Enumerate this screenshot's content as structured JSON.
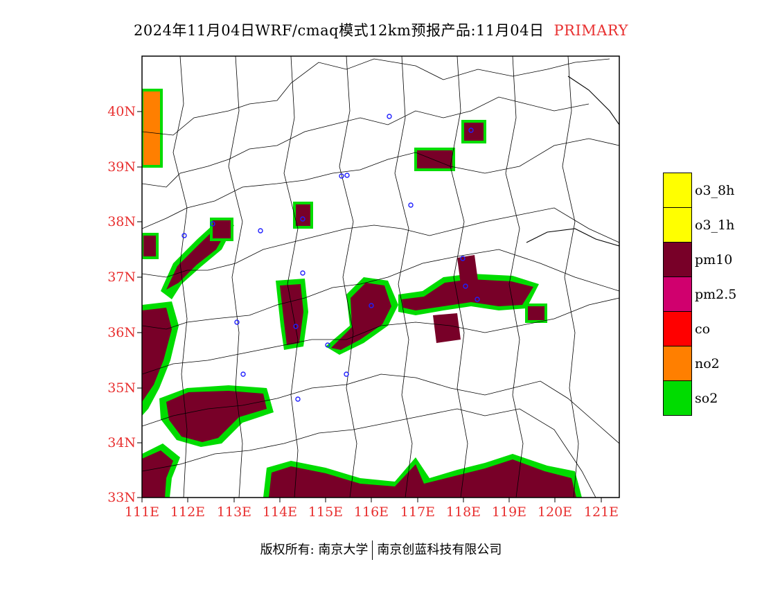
{
  "title": {
    "main": "2024年11月04日WRF/cmaq模式12km预报产品:11月04日",
    "variant": "PRIMARY"
  },
  "axes": {
    "lat_labels": [
      "40N",
      "39N",
      "38N",
      "37N",
      "36N",
      "35N",
      "34N",
      "33N"
    ],
    "lon_labels": [
      "111E",
      "112E",
      "113E",
      "114E",
      "115E",
      "116E",
      "117E",
      "118E",
      "119E",
      "120E",
      "121E"
    ],
    "lon_range": [
      111,
      121.4
    ],
    "lat_range": [
      33,
      41
    ]
  },
  "legend": {
    "items": [
      {
        "label": "o3_8h",
        "color": "#ffff00"
      },
      {
        "label": "o3_1h",
        "color": "#ffff00"
      },
      {
        "label": "pm10",
        "color": "#780028"
      },
      {
        "label": "pm2.5",
        "color": "#d0006e"
      },
      {
        "label": "co",
        "color": "#ff0000"
      },
      {
        "label": "no2",
        "color": "#ff7f00"
      },
      {
        "label": "so2",
        "color": "#00dc00"
      }
    ]
  },
  "footer": {
    "left": "版权所有: 南京大学",
    "right": "南京创蓝科技有限公司"
  }
}
